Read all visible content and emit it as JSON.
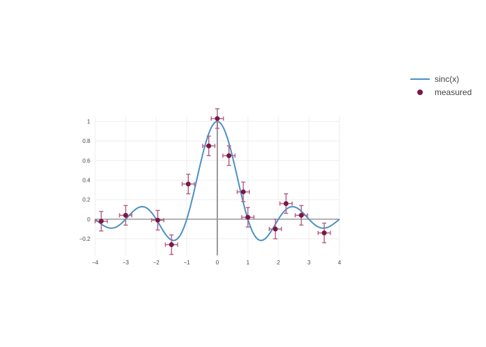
{
  "chart_data": {
    "type": "scatter",
    "title": "",
    "xlabel": "",
    "ylabel": "",
    "xlim": [
      -4,
      4
    ],
    "ylim": [
      -0.37,
      1.05
    ],
    "grid": true,
    "legend_position": "top-right",
    "x_ticks": [
      -4,
      -3,
      -2,
      -1,
      0,
      1,
      2,
      3,
      4
    ],
    "x_tick_labels": [
      "−4",
      "−3",
      "−2",
      "−1",
      "0",
      "1",
      "2",
      "3",
      "4"
    ],
    "y_ticks": [
      -0.2,
      0,
      0.2,
      0.4,
      0.6,
      0.8,
      1
    ],
    "y_tick_labels": [
      "−0.2",
      "0",
      "0.2",
      "0.4",
      "0.6",
      "0.8",
      "1"
    ],
    "series": [
      {
        "name": "sinc(x)",
        "type": "line",
        "color": "#4a90c4",
        "function": "sinc",
        "x_range": [
          -4,
          4
        ]
      },
      {
        "name": "measured",
        "type": "scatter",
        "color": "#7b1743",
        "error_color": "#b3658a",
        "points": [
          {
            "x": -3.8,
            "y": -0.02,
            "x_err": 0.2,
            "y_err": 0.1
          },
          {
            "x": -3.0,
            "y": 0.04,
            "x_err": 0.2,
            "y_err": 0.1
          },
          {
            "x": -1.95,
            "y": -0.01,
            "x_err": 0.2,
            "y_err": 0.1
          },
          {
            "x": -1.5,
            "y": -0.26,
            "x_err": 0.2,
            "y_err": 0.1
          },
          {
            "x": -0.95,
            "y": 0.36,
            "x_err": 0.2,
            "y_err": 0.1
          },
          {
            "x": -0.28,
            "y": 0.75,
            "x_err": 0.2,
            "y_err": 0.1
          },
          {
            "x": 0.0,
            "y": 1.03,
            "x_err": 0.2,
            "y_err": 0.1
          },
          {
            "x": 0.38,
            "y": 0.65,
            "x_err": 0.2,
            "y_err": 0.1
          },
          {
            "x": 0.85,
            "y": 0.28,
            "x_err": 0.2,
            "y_err": 0.1
          },
          {
            "x": 1.0,
            "y": 0.02,
            "x_err": 0.2,
            "y_err": 0.1
          },
          {
            "x": 1.9,
            "y": -0.1,
            "x_err": 0.2,
            "y_err": 0.1
          },
          {
            "x": 2.25,
            "y": 0.16,
            "x_err": 0.2,
            "y_err": 0.1
          },
          {
            "x": 2.75,
            "y": 0.04,
            "x_err": 0.2,
            "y_err": 0.1
          },
          {
            "x": 3.5,
            "y": -0.14,
            "x_err": 0.2,
            "y_err": 0.1
          }
        ]
      }
    ]
  }
}
